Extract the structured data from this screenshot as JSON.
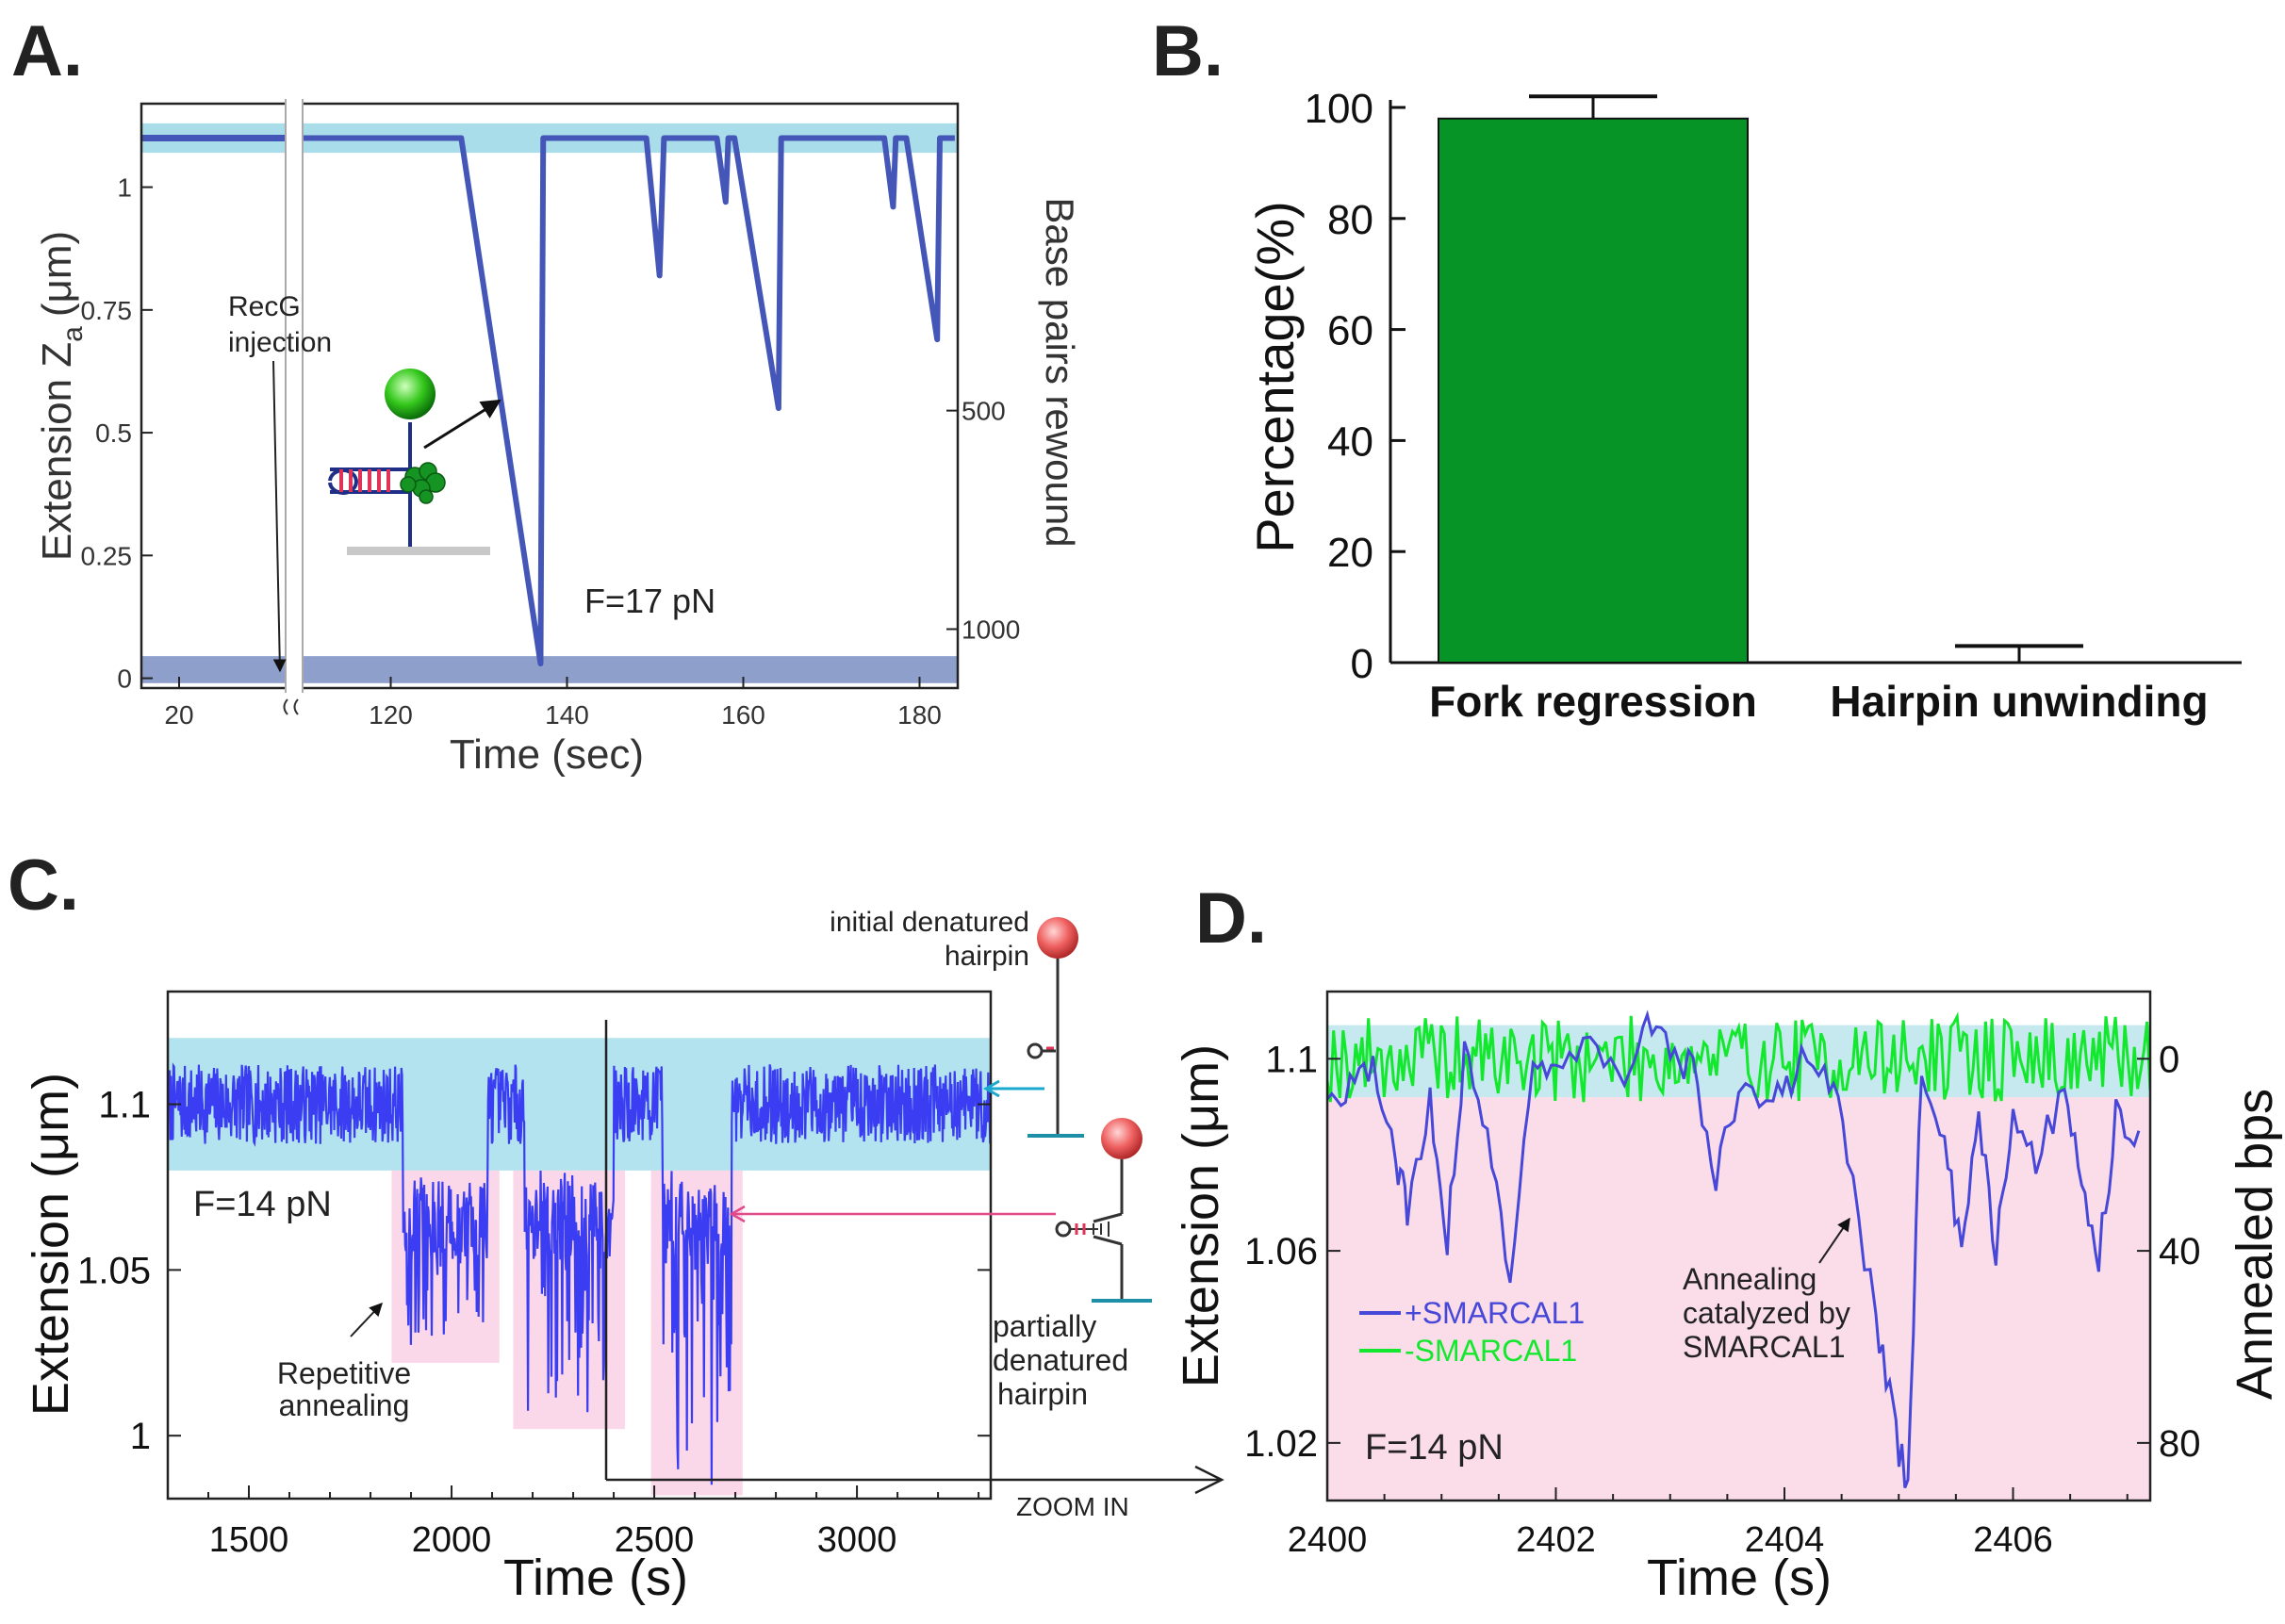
{
  "chart_data": [
    {
      "panel": "A",
      "type": "line",
      "panel_label": "A.",
      "xlabel": "Time (sec)",
      "ylabel_main": "Extension Z",
      "ylabel_sub": "a",
      "ylabel_unit": "(μm)",
      "y2label": "Base pairs rewound",
      "xticks": [
        {
          "value": 20,
          "label": "20"
        },
        {
          "value": 120,
          "label": "120"
        },
        {
          "value": 140,
          "label": "140"
        },
        {
          "value": 160,
          "label": "160"
        },
        {
          "value": 180,
          "label": "180"
        }
      ],
      "yticks": [
        {
          "value": 0,
          "label": "0"
        },
        {
          "value": 0.25,
          "label": "0.25"
        },
        {
          "value": 0.5,
          "label": "0.5"
        },
        {
          "value": 0.75,
          "label": "0.75"
        },
        {
          "value": 1,
          "label": "1"
        }
      ],
      "y2ticks": [
        {
          "value": 500,
          "label": "500"
        },
        {
          "value": 1000,
          "label": "1000"
        }
      ],
      "ylim": [
        -0.02,
        1.17
      ],
      "annotation_injection": "RecG\ninjection",
      "annotation_force": "F=17 pN",
      "series": [
        {
          "name": "extension",
          "color": "#4456b8",
          "points": [
            [
              110,
              1.1
            ],
            [
              128,
              1.1
            ],
            [
              137,
              0.03
            ],
            [
              137.3,
              1.1
            ],
            [
              149,
              1.1
            ],
            [
              150.5,
              0.82
            ],
            [
              151,
              1.1
            ],
            [
              157,
              1.1
            ],
            [
              158,
              0.97
            ],
            [
              158.3,
              1.1
            ],
            [
              159,
              1.1
            ],
            [
              164,
              0.55
            ],
            [
              164.3,
              1.1
            ],
            [
              176,
              1.1
            ],
            [
              177,
              0.96
            ],
            [
              177.3,
              1.1
            ],
            [
              178.5,
              1.1
            ],
            [
              182,
              0.69
            ],
            [
              182.3,
              1.1
            ],
            [
              184,
              1.1
            ]
          ]
        }
      ]
    },
    {
      "panel": "B",
      "type": "bar",
      "panel_label": "B.",
      "ylabel": "Percentage(%)",
      "categories": [
        "Fork regression",
        "Hairpin unwinding"
      ],
      "values": [
        98,
        0
      ],
      "errors": [
        4,
        3
      ],
      "bar_color": "#069426",
      "ylim": [
        0,
        100
      ],
      "yticks": [
        0,
        20,
        40,
        60,
        80,
        100
      ]
    },
    {
      "panel": "C",
      "type": "line",
      "panel_label": "C.",
      "xlabel": "Time (s)",
      "ylabel": "Extension (μm)",
      "xlim": [
        1300,
        3330
      ],
      "ylim": [
        0.981,
        1.134
      ],
      "xticks": [
        1500,
        2000,
        2500,
        3000
      ],
      "yticks": [
        {
          "value": 1,
          "label": "1"
        },
        {
          "value": 1.05,
          "label": "1.05"
        },
        {
          "value": 1.1,
          "label": "1.1"
        }
      ],
      "annotation_force": "F=14 pN",
      "annotation_repetitive": "Repetitive\nannealing",
      "label_initial": "initial denatured\nhairpin",
      "label_partial": "partially\ndenatured\nhairpin",
      "zoom_label": "ZOOM IN",
      "baseline": 1.1,
      "noise": 0.012,
      "events": [
        {
          "start": 1880,
          "end": 2090,
          "min": 1.025
        },
        {
          "start": 2180,
          "end": 2400,
          "min": 1.005
        },
        {
          "start": 2520,
          "end": 2690,
          "min": 0.985
        }
      ],
      "color": "#3b3df2"
    },
    {
      "panel": "D",
      "type": "line",
      "panel_label": "D.",
      "xlabel": "Time (s)",
      "ylabel": "Extension (μm)",
      "y2label": "Annealed bps",
      "xlim": [
        2400,
        2407.2
      ],
      "ylim": [
        1.008,
        1.114
      ],
      "xticks": [
        2400,
        2402,
        2404,
        2406
      ],
      "yticks": [
        {
          "value": 1.02,
          "label": "1.02"
        },
        {
          "value": 1.06,
          "label": "1.06"
        },
        {
          "value": 1.1,
          "label": "1.1"
        }
      ],
      "y2ticks": [
        {
          "value": 1.1,
          "label": "0"
        },
        {
          "value": 1.06,
          "label": "40"
        },
        {
          "value": 1.02,
          "label": "80"
        }
      ],
      "annotation_force": "F=14 pN",
      "annotation_catalyzed": "Annealing\ncatalyzed by\nSMARCAL1",
      "series": [
        {
          "name": "+SMARCAL1",
          "color": "#4747d8",
          "points": [
            [
              2400.0,
              1.092
            ],
            [
              2400.2,
              1.095
            ],
            [
              2400.4,
              1.098
            ],
            [
              2400.6,
              1.08
            ],
            [
              2400.7,
              1.068
            ],
            [
              2400.9,
              1.092
            ],
            [
              2401.05,
              1.062
            ],
            [
              2401.2,
              1.1
            ],
            [
              2401.4,
              1.085
            ],
            [
              2401.6,
              1.056
            ],
            [
              2401.8,
              1.1
            ],
            [
              2402.0,
              1.096
            ],
            [
              2402.3,
              1.104
            ],
            [
              2402.6,
              1.098
            ],
            [
              2402.8,
              1.106
            ],
            [
              2403.0,
              1.102
            ],
            [
              2403.2,
              1.098
            ],
            [
              2403.4,
              1.075
            ],
            [
              2403.6,
              1.094
            ],
            [
              2403.9,
              1.09
            ],
            [
              2404.1,
              1.098
            ],
            [
              2404.35,
              1.1
            ],
            [
              2404.55,
              1.082
            ],
            [
              2404.8,
              1.045
            ],
            [
              2404.95,
              1.025
            ],
            [
              2405.08,
              1.01
            ],
            [
              2405.2,
              1.1
            ],
            [
              2405.4,
              1.08
            ],
            [
              2405.55,
              1.062
            ],
            [
              2405.7,
              1.09
            ],
            [
              2405.85,
              1.06
            ],
            [
              2406.0,
              1.09
            ],
            [
              2406.2,
              1.078
            ],
            [
              2406.45,
              1.095
            ],
            [
              2406.6,
              1.075
            ],
            [
              2406.75,
              1.058
            ],
            [
              2406.9,
              1.088
            ],
            [
              2407.1,
              1.085
            ]
          ]
        },
        {
          "name": "-SMARCAL1",
          "color": "#14e82e",
          "baseline": 1.1,
          "amplitude": 0.009
        }
      ]
    }
  ]
}
